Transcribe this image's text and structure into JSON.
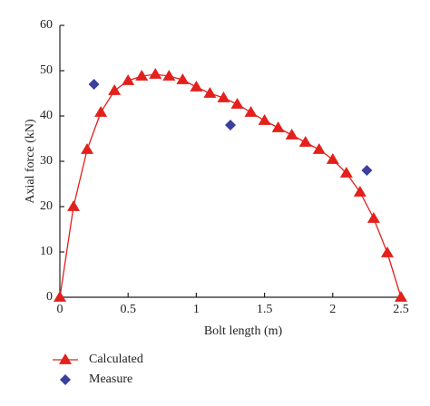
{
  "chart_data": {
    "type": "line",
    "xlabel": "Bolt length (m)",
    "ylabel": "Axial force (kN)",
    "xlim": [
      0,
      2.5
    ],
    "ylim": [
      0,
      60
    ],
    "xticks": [
      0,
      0.5,
      1,
      1.5,
      2,
      2.5
    ],
    "yticks": [
      0,
      10,
      20,
      30,
      40,
      50,
      60
    ],
    "legend": "bottom-left",
    "series": [
      {
        "name": "Calculated",
        "color": "#e3201b",
        "marker": "triangle",
        "line": true,
        "x": [
          0,
          0.1,
          0.2,
          0.3,
          0.4,
          0.5,
          0.6,
          0.7,
          0.8,
          0.9,
          1.0,
          1.1,
          1.2,
          1.3,
          1.4,
          1.5,
          1.6,
          1.7,
          1.8,
          1.9,
          2.0,
          2.1,
          2.2,
          2.3,
          2.4,
          2.5
        ],
        "values": [
          0,
          20,
          32.6,
          40.8,
          45.6,
          47.8,
          48.8,
          49.2,
          48.8,
          48,
          46.4,
          45,
          44,
          42.6,
          40.8,
          39,
          37.4,
          35.8,
          34.2,
          32.6,
          30.4,
          27.4,
          23.2,
          17.4,
          9.8,
          0
        ]
      },
      {
        "name": "Measure",
        "color": "#3b3f9e",
        "marker": "diamond",
        "line": false,
        "x": [
          0.25,
          1.25,
          2.25
        ],
        "values": [
          47,
          38,
          28
        ]
      }
    ]
  }
}
